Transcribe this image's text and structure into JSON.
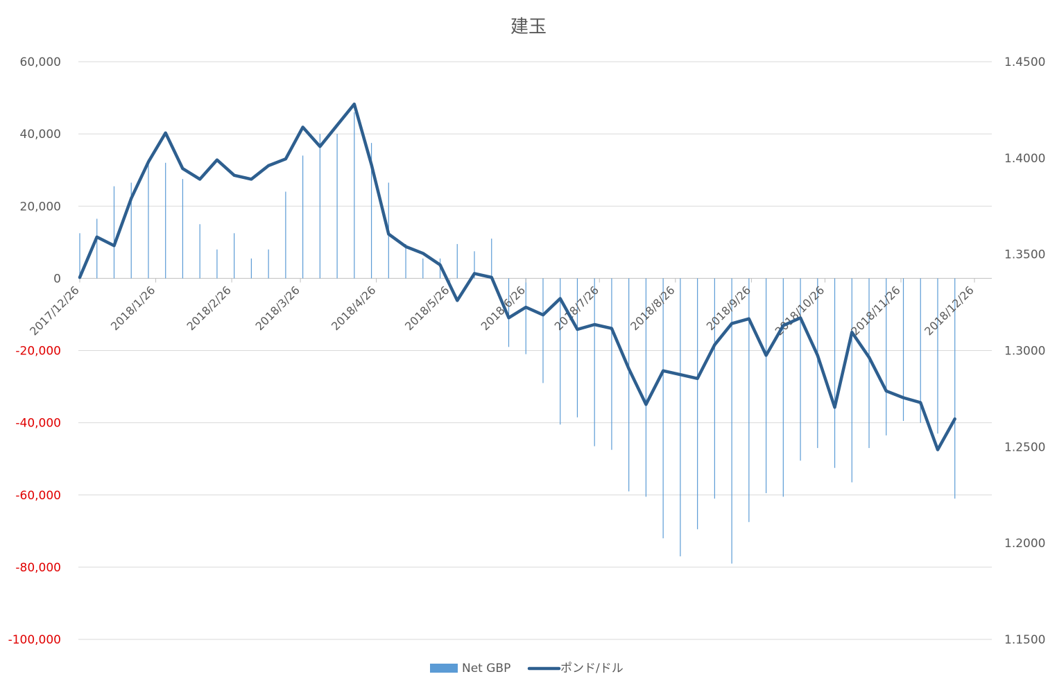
{
  "chart_data": {
    "type": "bar+line",
    "title": "建玉",
    "legend": {
      "position": "bottom",
      "entries": [
        "Net GBP",
        "ポンド/ドル"
      ]
    },
    "colors": {
      "bars": "#5b9bd5",
      "line": "#2e5f8f",
      "grid": "#d9d9d9",
      "negative_tick": "#e00000",
      "text": "#595959"
    },
    "x_axis": {
      "type": "date",
      "range": [
        "2017-12-26",
        "2018-12-26"
      ],
      "tick_labels": [
        "2017/12/26",
        "2018/1/26",
        "2018/2/26",
        "2018/3/26",
        "2018/4/26",
        "2018/5/26",
        "2018/6/26",
        "2018/7/26",
        "2018/8/26",
        "2018/9/26",
        "2018/10/26",
        "2018/11/26",
        "2018/12/26"
      ]
    },
    "y_left": {
      "range": [
        -100000,
        60000
      ],
      "ticks": [
        60000,
        40000,
        20000,
        0,
        -20000,
        -40000,
        -60000,
        -80000,
        -100000
      ],
      "tick_labels": [
        "60,000",
        "40,000",
        "20,000",
        "0",
        "-20,000",
        "-40,000",
        "-60,000",
        "-80,000",
        "-100,000"
      ]
    },
    "y_right": {
      "range": [
        1.15,
        1.45
      ],
      "ticks": [
        1.45,
        1.4,
        1.35,
        1.3,
        1.25,
        1.2,
        1.15
      ],
      "tick_labels": [
        "1.4500",
        "1.4000",
        "1.3500",
        "1.3000",
        "1.2500",
        "1.2000",
        "1.1500"
      ]
    },
    "grid": true,
    "dates": [
      "2017-12-26",
      "2018-01-02",
      "2018-01-09",
      "2018-01-16",
      "2018-01-23",
      "2018-01-30",
      "2018-02-06",
      "2018-02-13",
      "2018-02-20",
      "2018-02-27",
      "2018-03-06",
      "2018-03-13",
      "2018-03-20",
      "2018-03-27",
      "2018-04-03",
      "2018-04-10",
      "2018-04-17",
      "2018-04-24",
      "2018-05-01",
      "2018-05-08",
      "2018-05-15",
      "2018-05-22",
      "2018-05-29",
      "2018-06-05",
      "2018-06-12",
      "2018-06-19",
      "2018-06-26",
      "2018-07-03",
      "2018-07-10",
      "2018-07-17",
      "2018-07-24",
      "2018-07-31",
      "2018-08-07",
      "2018-08-14",
      "2018-08-21",
      "2018-08-28",
      "2018-09-04",
      "2018-09-11",
      "2018-09-18",
      "2018-09-25",
      "2018-10-02",
      "2018-10-09",
      "2018-10-16",
      "2018-10-23",
      "2018-10-30",
      "2018-11-06",
      "2018-11-13",
      "2018-11-20",
      "2018-11-27",
      "2018-12-04",
      "2018-12-11",
      "2018-12-18"
    ],
    "series": [
      {
        "name": "Net GBP",
        "type": "bar",
        "axis": "left",
        "values": [
          12500,
          16500,
          25500,
          26500,
          33000,
          32000,
          27500,
          15000,
          8000,
          12500,
          5500,
          8000,
          24000,
          34000,
          40000,
          40000,
          46000,
          37500,
          26500,
          9500,
          5500,
          5500,
          9500,
          7500,
          11000,
          -19000,
          -21000,
          -29000,
          -40500,
          -38500,
          -46500,
          -47500,
          -59000,
          -60500,
          -72000,
          -77000,
          -69500,
          -61000,
          -79000,
          -67500,
          -59500,
          -60500,
          -50500,
          -47000,
          -52500,
          -56500,
          -47000,
          -43500,
          -39500,
          -40000,
          -43000,
          -61000
        ]
      },
      {
        "name": "ポンド/ドル",
        "type": "line",
        "axis": "right",
        "values": [
          1.338,
          1.359,
          1.3545,
          1.379,
          1.398,
          1.413,
          1.3945,
          1.389,
          1.399,
          1.391,
          1.389,
          1.396,
          1.3995,
          1.416,
          1.406,
          1.417,
          1.428,
          1.3965,
          1.3605,
          1.354,
          1.3505,
          1.3445,
          1.326,
          1.34,
          1.338,
          1.317,
          1.3225,
          1.3185,
          1.327,
          1.311,
          1.3135,
          1.3115,
          1.2905,
          1.272,
          1.2895,
          1.2875,
          1.2855,
          1.303,
          1.314,
          1.3165,
          1.2975,
          1.313,
          1.317,
          1.2975,
          1.2705,
          1.3095,
          1.2965,
          1.279,
          1.2755,
          1.273,
          1.2485,
          1.2645
        ]
      }
    ]
  }
}
